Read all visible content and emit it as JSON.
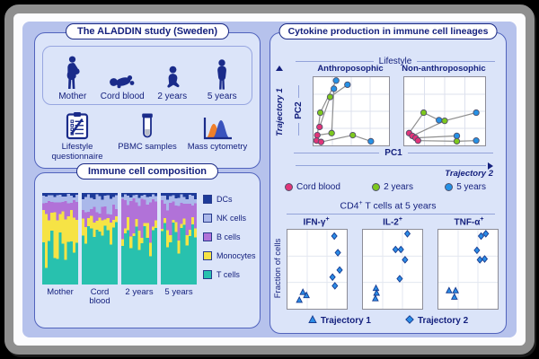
{
  "colors": {
    "outer_background": "#000000",
    "frame_gray": "#8f8f8f",
    "inner_white": "#fcfcfe",
    "canvas_periwinkle": "#b6c2ec",
    "panel_blue": "#dbe4f9",
    "panel_border": "#5163bd",
    "navy_text": "#15217e",
    "silhouette_navy": "#1a2b8a"
  },
  "study_panel": {
    "title": "The ALADDIN study (Sweden)",
    "timepoints": [
      {
        "label": "Mother",
        "icon": "mother-icon"
      },
      {
        "label": "Cord blood",
        "icon": "baby-icon"
      },
      {
        "label": "2 years",
        "icon": "toddler-icon"
      },
      {
        "label": "5 years",
        "icon": "child-icon"
      }
    ],
    "methods": [
      {
        "label": "Lifestyle questionnaire",
        "icon": "questionnaire-icon"
      },
      {
        "label": "PBMC samples",
        "icon": "tube-icon"
      },
      {
        "label": "Mass cytometry",
        "icon": "mass-cytometry-icon"
      }
    ]
  },
  "composition_panel": {
    "title": "Immune cell composition"
  },
  "cytokine_panel": {
    "title": "Cytokine production in immune cell lineages",
    "lifestyle_label": "Lifestyle",
    "pca": {
      "xlabel": "PC1",
      "ylabel": "PC2",
      "trajectory1_label": "Trajectory 1",
      "trajectory2_label": "Trajectory 2",
      "legend": [
        {
          "stage": "cord",
          "label": "Cord blood",
          "color": "#e13579"
        },
        {
          "stage": "2y",
          "label": "2 years",
          "color": "#7dc81e"
        },
        {
          "stage": "5y",
          "label": "5 years",
          "color": "#2591e6"
        }
      ]
    },
    "dotplots": {
      "header_pre": "CD4",
      "header_sup": "+",
      "header_post": " T cells at 5 years",
      "ylabel": "Fraction of cells",
      "marker_color": "#2b8ce6",
      "marker_stroke": "#173a8f",
      "legend": [
        {
          "name": "Trajectory 1",
          "marker": "triangle"
        },
        {
          "name": "Trajectory 2",
          "marker": "diamond"
        }
      ]
    }
  },
  "chart_data": [
    {
      "id": "immune_composition",
      "type": "stacked-bar",
      "title": "Immune cell composition",
      "groups": [
        "Mother",
        "Cord blood",
        "2 years",
        "5 years"
      ],
      "series": [
        {
          "name": "DCs",
          "color": "#1d3a99",
          "values": [
            3,
            4,
            3,
            4
          ]
        },
        {
          "name": "NK cells",
          "color": "#aab8ea",
          "values": [
            7,
            15,
            6,
            8
          ]
        },
        {
          "name": "B cells",
          "color": "#b172d8",
          "values": [
            14,
            10,
            30,
            24
          ]
        },
        {
          "name": "Monocytes",
          "color": "#f6e345",
          "values": [
            34,
            13,
            9,
            8
          ]
        },
        {
          "name": "T cells",
          "color": "#28c1ae",
          "values": [
            42,
            58,
            52,
            56
          ]
        }
      ],
      "values_unit": "approximate percent of cells per sample"
    },
    {
      "id": "pca_trajectories",
      "type": "scatter-trajectory",
      "xlabel": "PC1",
      "ylabel": "PC2",
      "coords_note": "percent of plot area, y from top",
      "subplots": [
        {
          "title": "Anthroposophic",
          "trajectories": [
            {
              "points": [
                {
                  "x": 4,
                  "y": 93,
                  "stage": "cord"
                },
                {
                  "x": 9,
                  "y": 52,
                  "stage": "2y"
                },
                {
                  "x": 30,
                  "y": 5,
                  "stage": "5y"
                }
              ]
            },
            {
              "points": [
                {
                  "x": 8,
                  "y": 73,
                  "stage": "cord"
                },
                {
                  "x": 22,
                  "y": 29,
                  "stage": "2y"
                },
                {
                  "x": 45,
                  "y": 11,
                  "stage": "5y"
                }
              ]
            },
            {
              "points": [
                {
                  "x": 5,
                  "y": 85,
                  "stage": "cord"
                },
                {
                  "x": 24,
                  "y": 82,
                  "stage": "2y"
                },
                {
                  "x": 27,
                  "y": 17,
                  "stage": "5y"
                }
              ]
            },
            {
              "points": [
                {
                  "x": 10,
                  "y": 95,
                  "stage": "cord"
                },
                {
                  "x": 52,
                  "y": 85,
                  "stage": "2y"
                },
                {
                  "x": 76,
                  "y": 94,
                  "stage": "5y"
                }
              ]
            }
          ]
        },
        {
          "title": "Non-anthroposophic",
          "trajectories": [
            {
              "points": [
                {
                  "x": 6,
                  "y": 82,
                  "stage": "cord"
                },
                {
                  "x": 24,
                  "y": 52,
                  "stage": "2y"
                },
                {
                  "x": 43,
                  "y": 63,
                  "stage": "5y"
                }
              ]
            },
            {
              "points": [
                {
                  "x": 10,
                  "y": 86,
                  "stage": "cord"
                },
                {
                  "x": 50,
                  "y": 64,
                  "stage": "2y"
                },
                {
                  "x": 89,
                  "y": 52,
                  "stage": "5y"
                }
              ]
            },
            {
              "points": [
                {
                  "x": 14,
                  "y": 89,
                  "stage": "cord"
                },
                {
                  "x": 65,
                  "y": 86,
                  "stage": "5y"
                }
              ]
            },
            {
              "points": [
                {
                  "x": 17,
                  "y": 93,
                  "stage": "cord"
                },
                {
                  "x": 65,
                  "y": 94,
                  "stage": "2y"
                },
                {
                  "x": 89,
                  "y": 93,
                  "stage": "5y"
                }
              ]
            }
          ]
        }
      ]
    },
    {
      "id": "cd4_dotplots",
      "type": "scatter",
      "header": "CD4+ T cells at 5 years",
      "ylabel": "Fraction of cells",
      "coords_note": "percent of plot area, y from top",
      "plots": [
        {
          "title_base": "IFN-γ",
          "title_sup": "+",
          "trajectory1": [
            [
              26,
              79
            ],
            [
              32,
              83
            ],
            [
              20,
              89
            ]
          ],
          "trajectory2": [
            [
              79,
              8
            ],
            [
              85,
              29
            ],
            [
              88,
              51
            ],
            [
              76,
              60
            ],
            [
              80,
              71
            ]
          ]
        },
        {
          "title_base": "IL-2",
          "title_sup": "+",
          "trajectory1": [
            [
              22,
              74
            ],
            [
              23,
              80
            ],
            [
              21,
              87
            ]
          ],
          "trajectory2": [
            [
              75,
              5
            ],
            [
              55,
              25
            ],
            [
              64,
              25
            ],
            [
              71,
              38
            ],
            [
              62,
              62
            ]
          ]
        },
        {
          "title_base": "TNF-α",
          "title_sup": "+",
          "trajectory1": [
            [
              18,
              77
            ],
            [
              29,
              77
            ],
            [
              27,
              85
            ]
          ],
          "trajectory2": [
            [
              72,
              8
            ],
            [
              80,
              5
            ],
            [
              65,
              26
            ],
            [
              70,
              38
            ],
            [
              78,
              37
            ]
          ]
        }
      ]
    }
  ]
}
